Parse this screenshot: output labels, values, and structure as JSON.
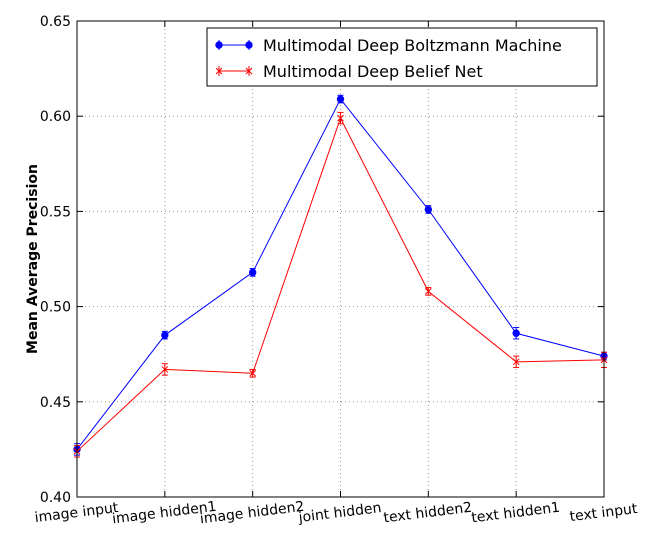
{
  "chart_data": {
    "type": "line",
    "title": "",
    "xlabel": "",
    "ylabel": "Mean Average Precision",
    "ylim": [
      0.4,
      0.65
    ],
    "yticks": [
      "0.40",
      "0.45",
      "0.50",
      "0.55",
      "0.60",
      "0.65"
    ],
    "categories": [
      "image input",
      "image hidden1",
      "image hidden2",
      "joint hidden",
      "text hidden2",
      "text hidden1",
      "text input"
    ],
    "grid": true,
    "legend_position": "top-right",
    "series": [
      {
        "name": "Multimodal Deep Boltzmann Machine",
        "color": "#0000ff",
        "marker": "circle",
        "values": [
          0.425,
          0.485,
          0.518,
          0.609,
          0.551,
          0.486,
          0.474
        ],
        "errors": [
          0.003,
          0.002,
          0.002,
          0.002,
          0.002,
          0.003,
          0.002
        ]
      },
      {
        "name": "Multimodal Deep Belief Net",
        "color": "#ff0000",
        "marker": "x",
        "values": [
          0.424,
          0.467,
          0.465,
          0.599,
          0.508,
          0.471,
          0.472
        ],
        "errors": [
          0.003,
          0.003,
          0.002,
          0.003,
          0.002,
          0.003,
          0.004
        ]
      }
    ]
  }
}
